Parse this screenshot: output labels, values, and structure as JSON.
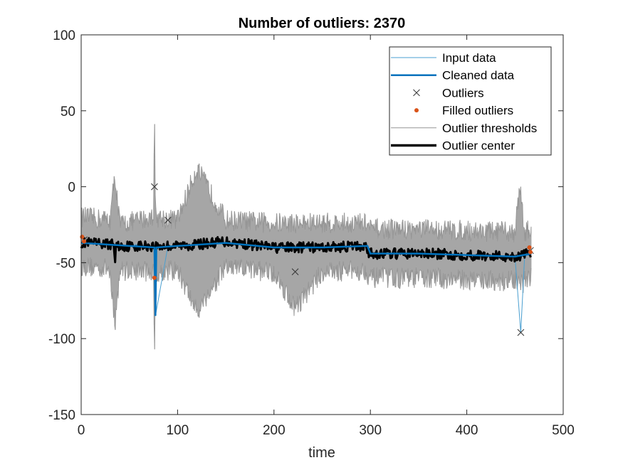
{
  "chart_data": {
    "type": "line",
    "title": "Number of outliers: 2370",
    "xlabel": "time",
    "ylabel": "",
    "xlim": [
      0,
      500
    ],
    "ylim": [
      -150,
      100
    ],
    "xticks": [
      0,
      100,
      200,
      300,
      400,
      500
    ],
    "yticks": [
      -150,
      -100,
      -50,
      0,
      50,
      100
    ],
    "xtick_labels": [
      "0",
      "100",
      "200",
      "300",
      "400",
      "500"
    ],
    "ytick_labels": [
      "-150",
      "-100",
      "-50",
      "0",
      "50",
      "100"
    ],
    "grid": false,
    "legend_position": "top-right",
    "data_x_end": 467,
    "series": [
      {
        "name": "Input data",
        "color": "#4a9fd0",
        "x": [
          0,
          30,
          35,
          40,
          60,
          76,
          77,
          90,
          120,
          150,
          200,
          222,
          250,
          295,
          300,
          350,
          400,
          450,
          456,
          460,
          467
        ],
        "values": [
          -37,
          -38,
          -40,
          -39,
          -38,
          -40,
          -85,
          -39,
          -38,
          -37,
          -40,
          -41,
          -40,
          -39,
          -44,
          -44,
          -45,
          -46,
          -96,
          -46,
          -44
        ]
      },
      {
        "name": "Cleaned data",
        "color": "#0072bd",
        "x": [
          0,
          50,
          76,
          77,
          78,
          100,
          150,
          200,
          250,
          297,
          300,
          350,
          400,
          450,
          467
        ],
        "values": [
          -37,
          -39,
          -40,
          -85,
          -40,
          -39,
          -37,
          -40,
          -40,
          -39,
          -44,
          -44,
          -45,
          -46,
          -44
        ]
      },
      {
        "name": "Outliers",
        "color": "#333333",
        "x": [
          76,
          456,
          222,
          90,
          3,
          466
        ],
        "values": [
          0,
          -96,
          -56,
          -22,
          -35,
          -42
        ]
      },
      {
        "name": "Filled outliers",
        "color": "#d95319",
        "x": [
          76,
          1,
          3,
          465,
          466
        ],
        "values": [
          -60,
          -33,
          -36,
          -40,
          -43
        ]
      },
      {
        "name": "Outlier thresholds",
        "color": "#969696",
        "upper_x": [
          0,
          30,
          35,
          40,
          60,
          75,
          76,
          77,
          100,
          120,
          150,
          200,
          250,
          295,
          300,
          350,
          400,
          450,
          455,
          460,
          467
        ],
        "upper_values": [
          -20,
          -22,
          8,
          -25,
          -22,
          -20,
          61,
          -20,
          -22,
          12,
          -22,
          -24,
          -24,
          -24,
          -28,
          -28,
          -29,
          -30,
          0,
          -30,
          -28
        ],
        "lower_x": [
          0,
          30,
          35,
          40,
          60,
          75,
          76,
          77,
          100,
          120,
          150,
          200,
          222,
          250,
          295,
          300,
          350,
          400,
          450,
          455,
          460,
          467
        ],
        "lower_values": [
          -52,
          -54,
          -92,
          -55,
          -55,
          -56,
          -125,
          -56,
          -55,
          -82,
          -53,
          -56,
          -80,
          -56,
          -55,
          -60,
          -60,
          -61,
          -62,
          -65,
          -62,
          -60
        ]
      },
      {
        "name": "Outlier center",
        "color": "#000000",
        "x": [
          0,
          34,
          35,
          36,
          60,
          100,
          120,
          150,
          200,
          250,
          296,
          298,
          350,
          400,
          450,
          467
        ],
        "values": [
          -37,
          -38,
          -50,
          -39,
          -39,
          -39,
          -38,
          -36,
          -40,
          -40,
          -39,
          -44,
          -44,
          -45,
          -46,
          -44
        ]
      }
    ]
  }
}
